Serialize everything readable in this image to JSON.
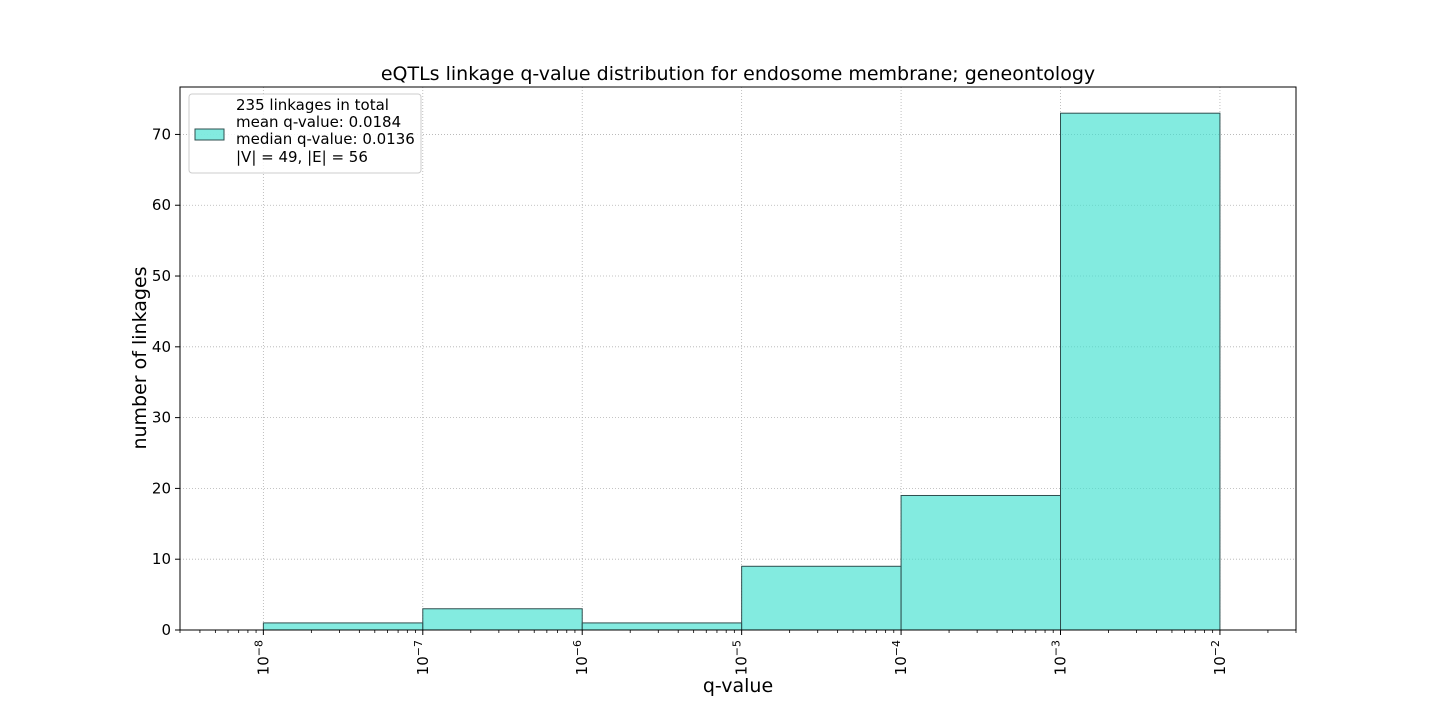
{
  "chart_data": {
    "type": "bar",
    "title": "eQTLs linkage q-value distribution for endosome membrane; geneontology",
    "xlabel": "q-value",
    "ylabel": "number of linkages",
    "x_scale": "log",
    "xlim": [
      3e-09,
      0.03
    ],
    "ylim": [
      0,
      76.7
    ],
    "y_ticks": [
      0,
      10,
      20,
      30,
      40,
      50,
      60,
      70
    ],
    "x_ticks": [
      {
        "value": 1e-08,
        "base": "10",
        "exp": "−8"
      },
      {
        "value": 1e-07,
        "base": "10",
        "exp": "−7"
      },
      {
        "value": 1e-06,
        "base": "10",
        "exp": "−6"
      },
      {
        "value": 1e-05,
        "base": "10",
        "exp": "−5"
      },
      {
        "value": 0.0001,
        "base": "10",
        "exp": "−4"
      },
      {
        "value": 0.001,
        "base": "10",
        "exp": "−3"
      },
      {
        "value": 0.01,
        "base": "10",
        "exp": "−2"
      }
    ],
    "bins": [
      {
        "from": 1e-08,
        "to": 1e-07,
        "count": 1
      },
      {
        "from": 1e-07,
        "to": 1e-06,
        "count": 3
      },
      {
        "from": 1e-06,
        "to": 1e-05,
        "count": 1
      },
      {
        "from": 1e-05,
        "to": 0.0001,
        "count": 9
      },
      {
        "from": 0.0001,
        "to": 0.001,
        "count": 19
      },
      {
        "from": 0.001,
        "to": 0.01,
        "count": 73
      }
    ],
    "grid": true,
    "bar_color": "#40E0D0",
    "bar_edge_color": "#2f4f4f",
    "legend": {
      "position": "top-left",
      "lines": [
        "235 linkages in total",
        "mean q-value: 0.0184",
        "median q-value: 0.0136",
        "|V| = 49, |E| = 56"
      ]
    }
  }
}
